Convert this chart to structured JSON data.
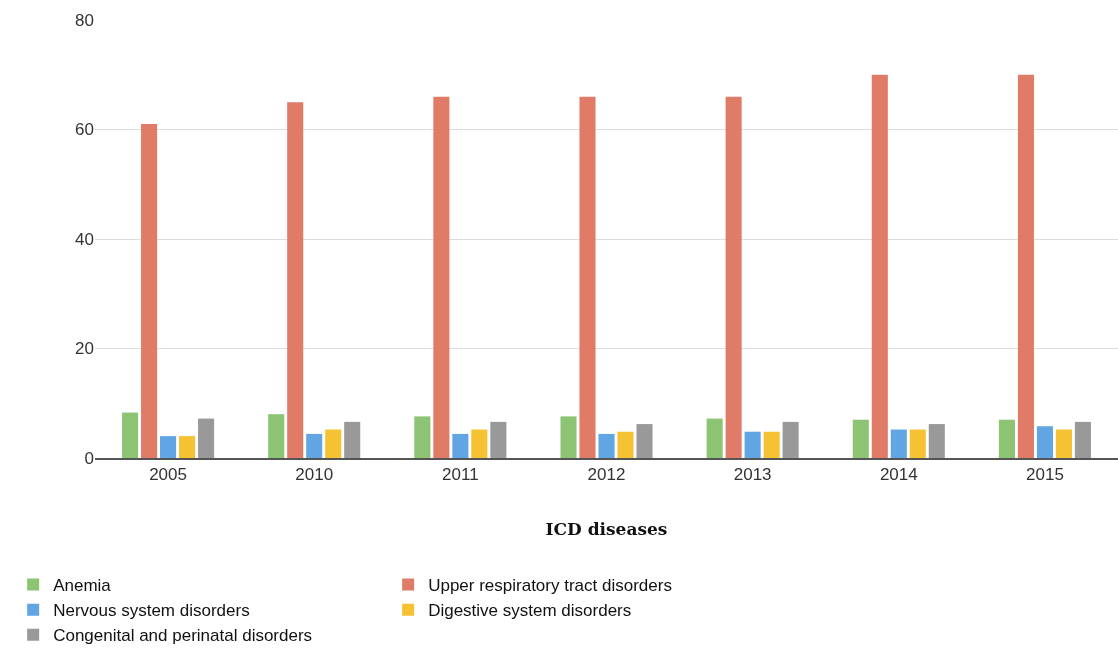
{
  "chart_data": {
    "type": "bar",
    "xlabel": "ICD diseases",
    "categories": [
      "2005",
      "2010",
      "2011",
      "2012",
      "2013",
      "2014",
      "2015"
    ],
    "series": [
      {
        "name": "Anemia",
        "color": "#8cc474",
        "values": [
          8.3,
          8,
          7.6,
          7.6,
          7.2,
          7,
          7
        ]
      },
      {
        "name": "Upper respiratory tract disorders",
        "color": "#e07b67",
        "values": [
          61,
          65,
          66,
          66,
          66,
          70,
          70
        ]
      },
      {
        "name": "Nervous system disorders",
        "color": "#62a5e3",
        "values": [
          4,
          4.4,
          4.4,
          4.4,
          4.8,
          5.2,
          5.8
        ]
      },
      {
        "name": "Digestive system disorders",
        "color": "#f4c232",
        "values": [
          4,
          5.2,
          5.2,
          4.8,
          4.8,
          5.2,
          5.2
        ]
      },
      {
        "name": "Congenital and perinatal disorders",
        "color": "#999999",
        "values": [
          7.2,
          6.6,
          6.6,
          6.2,
          6.6,
          6.2,
          6.6
        ]
      }
    ],
    "ylim": [
      0,
      80
    ],
    "yticks": [
      0,
      20,
      40,
      60,
      80
    ],
    "grid": "y",
    "legend": "bottom"
  }
}
